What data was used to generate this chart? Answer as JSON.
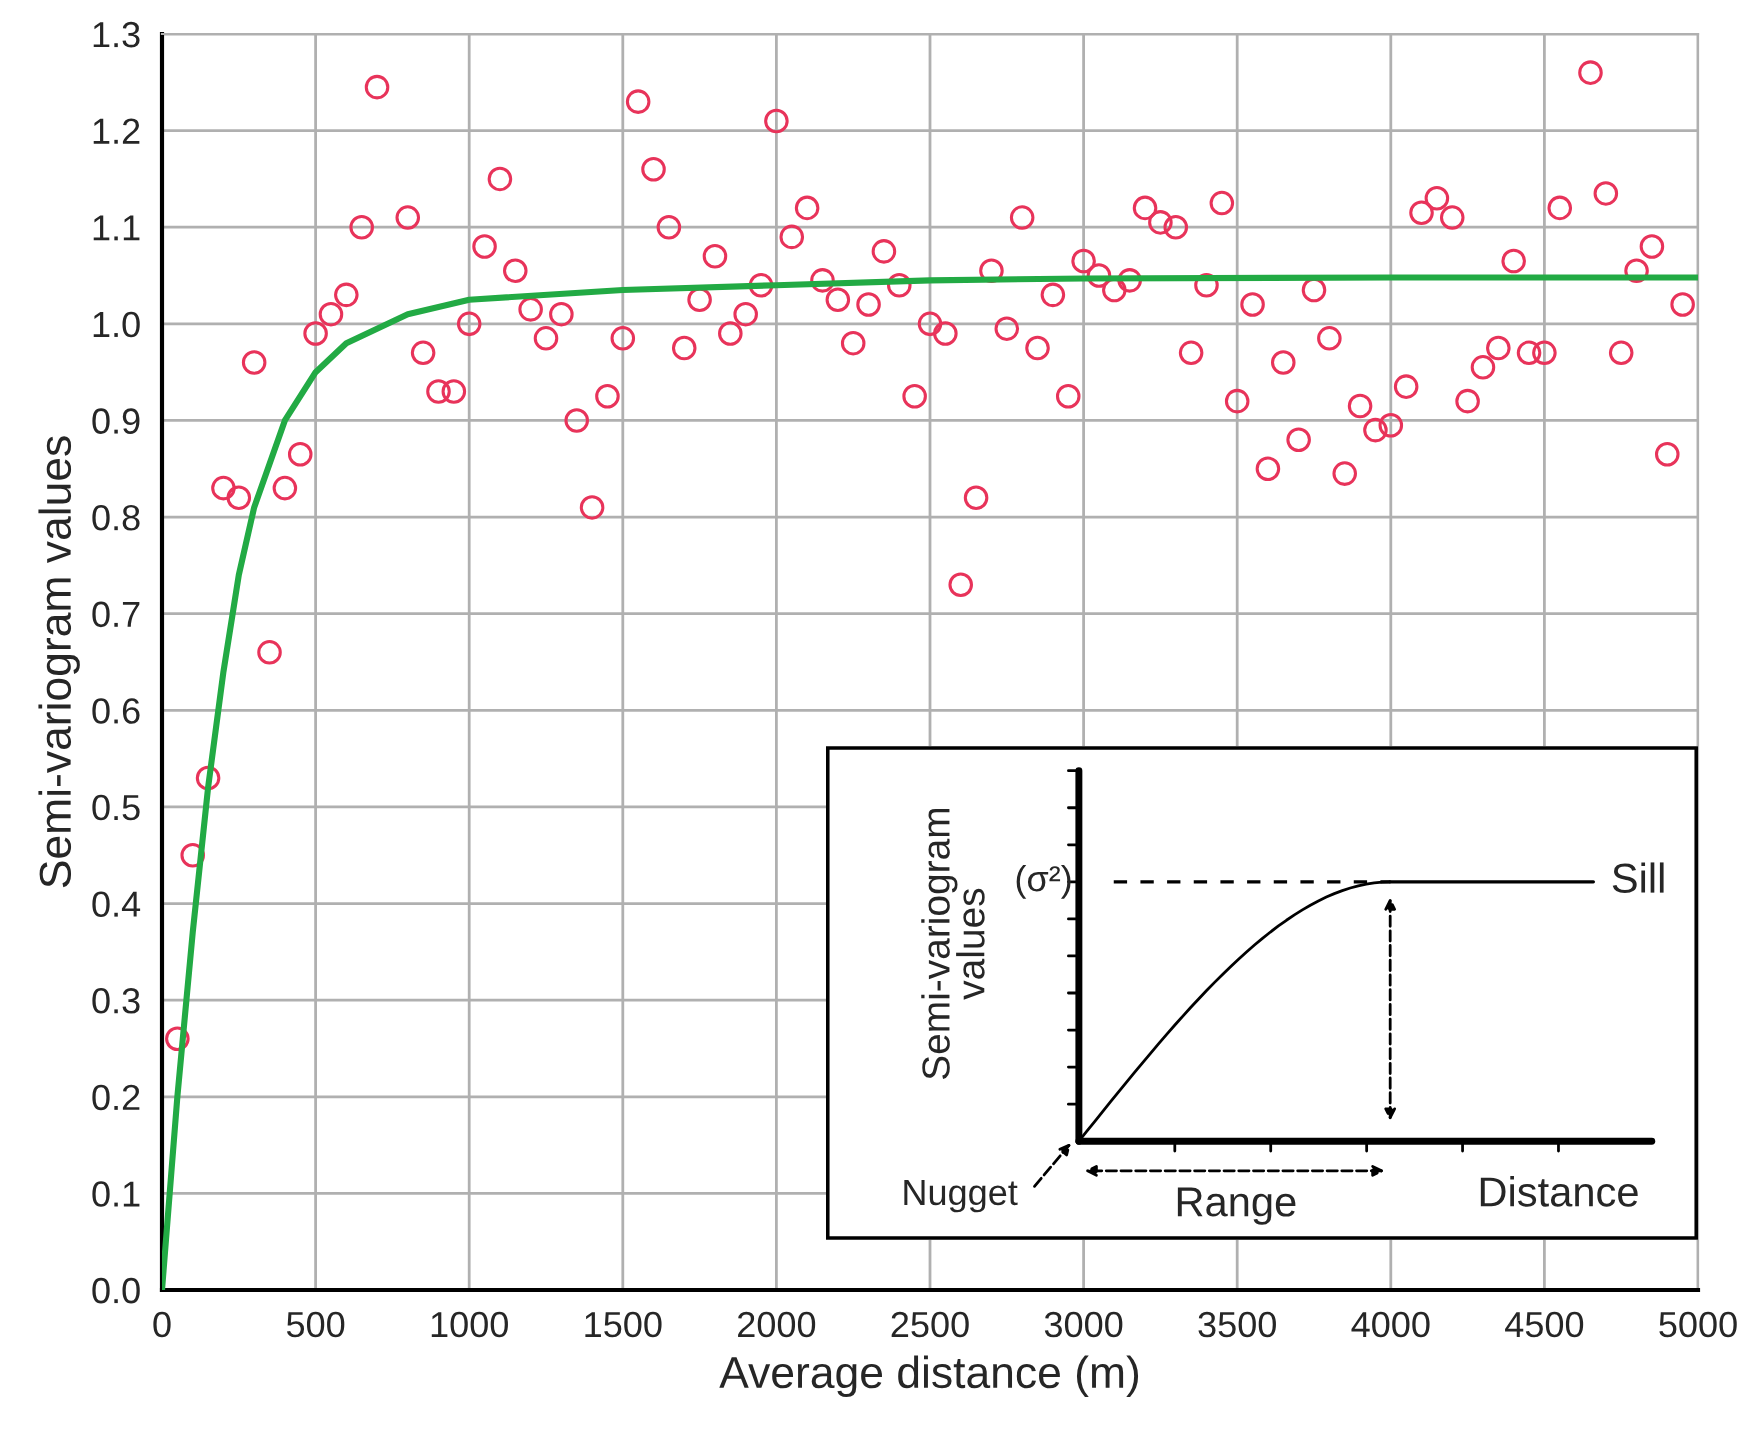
{
  "chart_data": [
    {
      "type": "scatter",
      "xlabel": "Average distance (m)",
      "ylabel": "Semi-variogram values",
      "xlim": [
        0,
        5000
      ],
      "ylim": [
        0,
        1.3
      ],
      "xticks": [
        0,
        500,
        1000,
        1500,
        2000,
        2500,
        3000,
        3500,
        4000,
        4500,
        5000
      ],
      "yticks": [
        {
          "value": 0,
          "label": "0.0"
        },
        {
          "value": 0.1,
          "label": "0.1"
        },
        {
          "value": 0.2,
          "label": "0.2"
        },
        {
          "value": 0.3,
          "label": "0.3"
        },
        {
          "value": 0.4,
          "label": "0.4"
        },
        {
          "value": 0.5,
          "label": "0.5"
        },
        {
          "value": 0.6,
          "label": "0.6"
        },
        {
          "value": 0.7,
          "label": "0.7"
        },
        {
          "value": 0.8,
          "label": "0.8"
        },
        {
          "value": 0.9,
          "label": "0.9"
        },
        {
          "value": 1.0,
          "label": "1.0"
        },
        {
          "value": 1.1,
          "label": "1.1"
        },
        {
          "value": 1.2,
          "label": "1.2"
        },
        {
          "value": 1.3,
          "label": "1.3"
        }
      ],
      "grid": true,
      "legend": false,
      "series": [
        {
          "type": "scatter",
          "marker": "circle",
          "color": "#e8335a",
          "x": [
            50,
            100,
            150,
            200,
            250,
            300,
            350,
            400,
            450,
            500,
            550,
            600,
            650,
            700,
            800,
            850,
            900,
            950,
            1000,
            1050,
            1100,
            1150,
            1200,
            1250,
            1300,
            1350,
            1400,
            1450,
            1500,
            1550,
            1600,
            1650,
            1700,
            1750,
            1800,
            1850,
            1900,
            1950,
            2000,
            2050,
            2100,
            2150,
            2200,
            2250,
            2300,
            2350,
            2400,
            2450,
            2500,
            2550,
            2600,
            2650,
            2700,
            2750,
            2800,
            2850,
            2900,
            2950,
            3000,
            3050,
            3100,
            3150,
            3200,
            3250,
            3300,
            3350,
            3400,
            3450,
            3500,
            3550,
            3600,
            3650,
            3700,
            3750,
            3800,
            3850,
            3900,
            3950,
            4000,
            4050,
            4100,
            4150,
            4200,
            4250,
            4300,
            4350,
            4400,
            4450,
            4500,
            4550,
            4650,
            4700,
            4750,
            4800,
            4850,
            4900,
            4950
          ],
          "values": [
            0.26,
            0.45,
            0.53,
            0.83,
            0.82,
            0.96,
            0.66,
            0.83,
            0.865,
            0.99,
            1.01,
            1.03,
            1.1,
            1.245,
            1.11,
            0.97,
            0.93,
            0.93,
            1.0,
            1.08,
            1.15,
            1.055,
            1.015,
            0.985,
            1.01,
            0.9,
            0.81,
            0.925,
            0.985,
            1.23,
            1.16,
            1.1,
            0.975,
            1.025,
            1.07,
            0.99,
            1.01,
            1.04,
            1.21,
            1.09,
            1.12,
            1.045,
            1.025,
            0.98,
            1.02,
            1.075,
            1.04,
            0.925,
            1.0,
            0.99,
            0.73,
            0.82,
            1.055,
            0.995,
            1.11,
            0.975,
            1.03,
            0.925,
            1.065,
            1.05,
            1.035,
            1.045,
            1.12,
            1.105,
            1.1,
            0.97,
            1.04,
            1.125,
            0.92,
            1.02,
            0.85,
            0.96,
            0.88,
            1.035,
            0.985,
            0.845,
            0.915,
            0.89,
            0.895,
            0.935,
            1.115,
            1.13,
            1.11,
            0.92,
            0.955,
            0.975,
            1.065,
            0.97,
            0.97,
            1.12,
            1.26,
            1.135,
            0.97,
            1.055,
            1.08,
            0.865,
            1.02
          ]
        },
        {
          "type": "line",
          "marker": "none",
          "line_style": "solid",
          "color": "#22aa44",
          "x": [
            0,
            50,
            100,
            150,
            200,
            250,
            300,
            400,
            500,
            600,
            800,
            1000,
            1500,
            2000,
            2500,
            3000,
            4000,
            5000
          ],
          "values": [
            0,
            0.2,
            0.37,
            0.52,
            0.64,
            0.74,
            0.81,
            0.9,
            0.95,
            0.98,
            1.01,
            1.025,
            1.035,
            1.04,
            1.045,
            1.047,
            1.048,
            1.048
          ]
        }
      ]
    },
    {
      "type": "other",
      "xlabel": "Distance",
      "ylabel": "Semi-variogram\nvalues",
      "annotations": [
        "(σ²)",
        "Sill",
        "Nugget",
        "Range"
      ]
    }
  ]
}
